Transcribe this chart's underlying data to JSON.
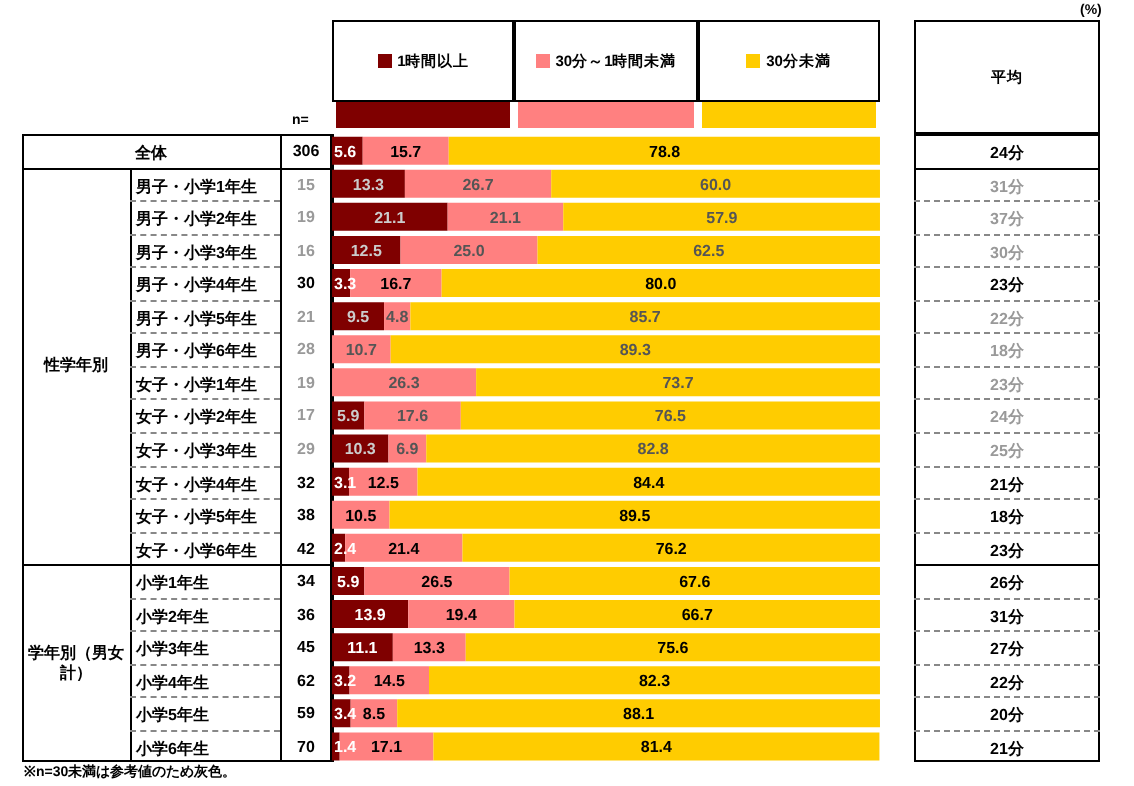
{
  "chart_data": {
    "type": "bar",
    "orientation": "horizontal",
    "stacked": true,
    "legend": "top",
    "tick_labels": false,
    "xlim": [
      0,
      100
    ],
    "categories": [
      "全体",
      "男子・小学1年生",
      "男子・小学2年生",
      "男子・小学3年生",
      "男子・小学4年生",
      "男子・小学5年生",
      "男子・小学6年生",
      "女子・小学1年生",
      "女子・小学2年生",
      "女子・小学3年生",
      "女子・小学4年生",
      "女子・小学5年生",
      "女子・小学6年生",
      "小学1年生",
      "小学2年生",
      "小学3年生",
      "小学4年生",
      "小学5年生",
      "小学6年生"
    ],
    "series": [
      {
        "name": "1時間以上",
        "color": "#7f0000",
        "values": [
          5.6,
          13.3,
          21.1,
          12.5,
          3.3,
          9.5,
          0,
          0,
          5.9,
          10.3,
          3.1,
          0,
          2.4,
          5.9,
          13.9,
          11.1,
          3.2,
          3.4,
          1.4
        ],
        "value_labels": [
          "5.6",
          "13.3",
          "21.1",
          "12.5",
          "3.3",
          "9.5",
          null,
          null,
          "5.9",
          "10.3",
          "3.1",
          null,
          "2.4",
          "5.9",
          "13.9",
          "11.1",
          "3.2",
          "3.4",
          "1.4"
        ]
      },
      {
        "name": "30分～1時間未満",
        "color": "#ff8080",
        "values": [
          15.7,
          26.7,
          21.1,
          25.0,
          16.7,
          4.8,
          10.7,
          26.3,
          17.6,
          6.9,
          12.5,
          10.5,
          21.4,
          26.5,
          19.4,
          13.3,
          14.5,
          8.5,
          17.1
        ],
        "value_labels": [
          "15.7",
          "26.7",
          "21.1",
          "25.0",
          "16.7",
          "4.8",
          "10.7",
          "26.3",
          "17.6",
          "6.9",
          "12.5",
          "10.5",
          "21.4",
          "26.5",
          "19.4",
          "13.3",
          "14.5",
          "8.5",
          "17.1"
        ]
      },
      {
        "name": "30分未満",
        "color": "#ffcc00",
        "values": [
          78.8,
          60.0,
          57.9,
          62.5,
          80.0,
          85.7,
          89.3,
          73.7,
          76.5,
          82.8,
          84.4,
          89.5,
          76.2,
          67.6,
          66.7,
          75.6,
          82.3,
          88.1,
          81.4
        ],
        "value_labels": [
          "78.8",
          "60.0",
          "57.9",
          "62.5",
          "80.0",
          "85.7",
          "89.3",
          "73.7",
          "76.5",
          "82.8",
          "84.4",
          "89.5",
          "76.2",
          "67.6",
          "66.7",
          "75.6",
          "82.3",
          "88.1",
          "81.4"
        ]
      }
    ],
    "annotations": [
      "(%)",
      "n=",
      "平均",
      "性学年別",
      "学年別（男女計）",
      "※n=30未満は参考値のため灰色。",
      "306",
      "24分",
      "15",
      "31分",
      "19",
      "37分",
      "16",
      "30分",
      "30",
      "23分",
      "21",
      "22分",
      "28",
      "18分",
      "19",
      "23分",
      "17",
      "24分",
      "29",
      "25分",
      "32",
      "21分",
      "38",
      "18分",
      "42",
      "23分",
      "34",
      "26分",
      "36",
      "31分",
      "45",
      "27分",
      "62",
      "22分",
      "59",
      "20分",
      "70",
      "21分"
    ]
  }
}
